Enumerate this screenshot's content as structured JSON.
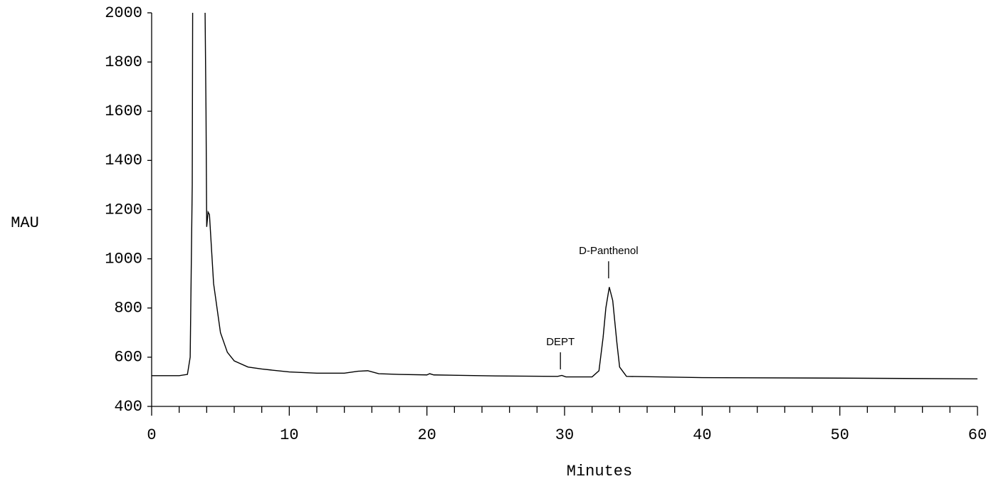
{
  "chart_data": {
    "type": "line",
    "color": "#000000",
    "y_label": "MAU",
    "x_label": "Minutes",
    "x": [
      0,
      1,
      2,
      2.6,
      2.8,
      2.95,
      3.0,
      3.8,
      3.95,
      4.0,
      4.1,
      4.2,
      4.5,
      5.0,
      5.5,
      6.0,
      7.0,
      8.0,
      10.0,
      12.0,
      14.0,
      15.0,
      15.7,
      16.5,
      18.0,
      20.0,
      20.2,
      20.5,
      25.0,
      29.5,
      29.8,
      30.1,
      32.0,
      32.5,
      32.8,
      33.0,
      33.25,
      33.5,
      33.8,
      34.0,
      34.5,
      40.0,
      50.0,
      60.0
    ],
    "values": [
      525,
      525,
      525,
      530,
      600,
      1300,
      2500,
      2500,
      1600,
      1130,
      1190,
      1180,
      900,
      700,
      620,
      585,
      560,
      552,
      540,
      535,
      535,
      543,
      545,
      533,
      530,
      528,
      533,
      528,
      524,
      522,
      526,
      520,
      520,
      545,
      680,
      800,
      885,
      830,
      660,
      560,
      522,
      517,
      515,
      512
    ],
    "annotations": [
      {
        "text": "DEPT",
        "x": 29.7,
        "y": 620
      },
      {
        "text": "D-Panthenol",
        "x": 33.2,
        "y": 990
      }
    ],
    "xlim": [
      0,
      60
    ],
    "xticks": [
      0,
      10,
      20,
      30,
      40,
      50,
      60
    ],
    "xminorticks": [
      2,
      4,
      6,
      8,
      12,
      14,
      16,
      18,
      22,
      24,
      26,
      28,
      32,
      34,
      36,
      38,
      42,
      44,
      46,
      48,
      52,
      54,
      56,
      58
    ],
    "ylim": [
      400,
      2000
    ],
    "yticks": [
      400,
      600,
      800,
      1000,
      1200,
      1400,
      1600,
      1800,
      2000
    ]
  }
}
